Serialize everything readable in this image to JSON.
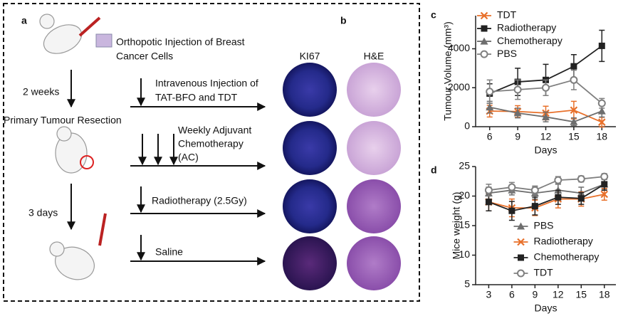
{
  "panel_labels": {
    "a": "a",
    "b": "b",
    "c": "c",
    "d": "d"
  },
  "schematic": {
    "injection": [
      "Orthopotic Injection of Breast",
      "Cancer Cells"
    ],
    "step1": "2 weeks",
    "resection": "Primary Tumour Resection",
    "step2": "3 days",
    "column_headers": [
      "KI67",
      "H&E"
    ],
    "treatments": [
      [
        "Intravenous Injection of",
        "TAT-BFO and TDT"
      ],
      [
        "Weekly Adjuvant",
        "Chemotherapy",
        "(AC)"
      ],
      [
        "Radiotherapy (2.5Gy)"
      ],
      [
        "Saline"
      ]
    ]
  },
  "chart_data": [
    {
      "type": "line",
      "x_label": "Days",
      "y_label": "Tumour Volume (mm³)",
      "x": [
        6,
        9,
        12,
        15,
        18
      ],
      "xlim": [
        4.5,
        19.5
      ],
      "xticks": [
        6,
        9,
        12,
        15,
        18
      ],
      "ylim": [
        0,
        5700
      ],
      "yticks": [
        0,
        2000,
        4000
      ],
      "legend": "upper left",
      "series": [
        {
          "name": "TDT",
          "color": "#e8702a",
          "marker": "x",
          "values": [
            800,
            780,
            700,
            850,
            230
          ],
          "errors": [
            300,
            300,
            350,
            450,
            250
          ]
        },
        {
          "name": "Radiotherapy",
          "color": "#222222",
          "marker": "square",
          "values": [
            1700,
            2300,
            2400,
            3100,
            4150
          ],
          "errors": [
            500,
            700,
            800,
            600,
            800
          ]
        },
        {
          "name": "Chemotherapy",
          "color": "#6e6e6e",
          "marker": "triangle",
          "values": [
            1000,
            700,
            500,
            250,
            800
          ],
          "errors": [
            300,
            250,
            250,
            200,
            300
          ]
        },
        {
          "name": "PBS",
          "color": "#7f7f7f",
          "marker": "circle",
          "values": [
            1800,
            1900,
            2000,
            2400,
            1200
          ],
          "errors": [
            600,
            500,
            400,
            500,
            250
          ]
        }
      ]
    },
    {
      "type": "line",
      "x_label": "Days",
      "y_label": "Mice weight (g)",
      "x": [
        3,
        6,
        9,
        12,
        15,
        18
      ],
      "xlim": [
        1.3,
        19.5
      ],
      "xticks": [
        3,
        6,
        9,
        12,
        15,
        18
      ],
      "ylim": [
        5,
        25
      ],
      "yticks": [
        5,
        10,
        15,
        20,
        25
      ],
      "legend": "lower center",
      "series": [
        {
          "name": "PBS",
          "color": "#6e6e6e",
          "marker": "triangle",
          "values": [
            20.5,
            21,
            20.5,
            21,
            20.5,
            22
          ],
          "errors": [
            1,
            0.8,
            1,
            1,
            1,
            0.8
          ]
        },
        {
          "name": "Radiotherapy",
          "color": "#e8702a",
          "marker": "x",
          "values": [
            19,
            18,
            18,
            19.5,
            19.5,
            20.3
          ],
          "errors": [
            1.5,
            1.5,
            1.3,
            1.5,
            1.2,
            1
          ]
        },
        {
          "name": "Chemotherapy",
          "color": "#222222",
          "marker": "square",
          "values": [
            19,
            17.5,
            18.3,
            19.8,
            19.6,
            22
          ],
          "errors": [
            1.5,
            1.6,
            1.5,
            1.2,
            1,
            1
          ]
        },
        {
          "name": "TDT",
          "color": "#7f7f7f",
          "marker": "circle",
          "values": [
            21,
            21.5,
            21,
            22.7,
            22.9,
            23.3
          ],
          "errors": [
            1,
            0.8,
            0.7,
            0.6,
            0.5,
            0.5
          ]
        }
      ]
    }
  ]
}
